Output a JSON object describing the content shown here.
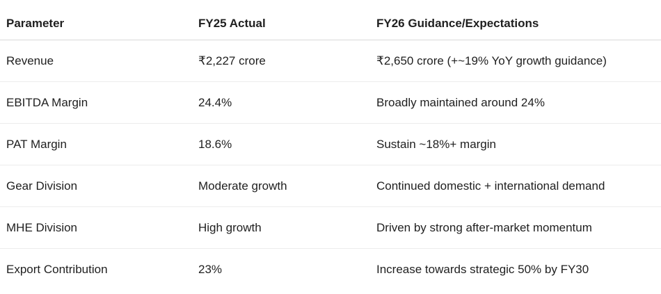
{
  "table": {
    "headers": [
      "Parameter",
      "FY25 Actual",
      "FY26 Guidance/Expectations"
    ],
    "rows": [
      [
        "Revenue",
        "₹2,227 crore",
        "₹2,650 crore (+~19% YoY growth guidance)"
      ],
      [
        "EBITDA Margin",
        "24.4%",
        "Broadly maintained around 24%"
      ],
      [
        "PAT Margin",
        "18.6%",
        "Sustain ~18%+ margin"
      ],
      [
        "Gear Division",
        "Moderate growth",
        "Continued domestic + international demand"
      ],
      [
        "MHE Division",
        "High growth",
        "Driven by strong after-market momentum"
      ],
      [
        "Export Contribution",
        "23%",
        "Increase towards strategic 50% by FY30"
      ]
    ]
  }
}
